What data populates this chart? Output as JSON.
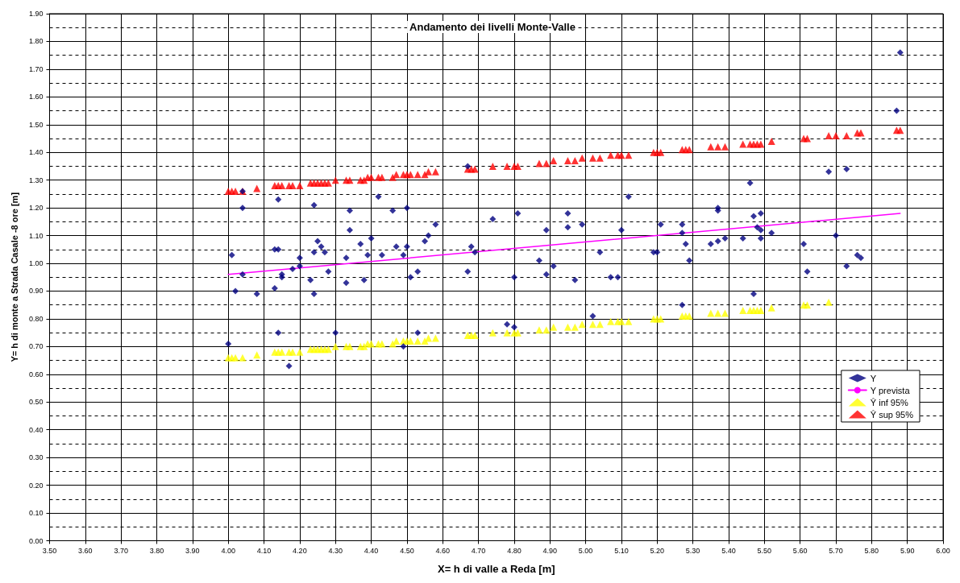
{
  "chart_data": {
    "type": "scatter",
    "title": "Andamento dei livelli Monte-Valle",
    "xlabel": "X= h di valle a Reda [m]",
    "ylabel": "Y= h di monte a Strada Casale -8 ore [m]",
    "xlim": [
      3.5,
      6.0
    ],
    "ylim": [
      0,
      1.9
    ],
    "xticks": [
      {
        "value": 3.5,
        "label": "3.50"
      },
      {
        "value": 3.6,
        "label": "3.60"
      },
      {
        "value": 3.7,
        "label": "3.70"
      },
      {
        "value": 3.8,
        "label": "3.80"
      },
      {
        "value": 3.9,
        "label": "3.90"
      },
      {
        "value": 4.0,
        "label": "4.00"
      },
      {
        "value": 4.1,
        "label": "4.10"
      },
      {
        "value": 4.2,
        "label": "4.20"
      },
      {
        "value": 4.3,
        "label": "4.30"
      },
      {
        "value": 4.4,
        "label": "4.40"
      },
      {
        "value": 4.5,
        "label": "4.50"
      },
      {
        "value": 4.6,
        "label": "4.60"
      },
      {
        "value": 4.7,
        "label": "4.70"
      },
      {
        "value": 4.8,
        "label": "4.80"
      },
      {
        "value": 4.9,
        "label": "4.90"
      },
      {
        "value": 5.0,
        "label": "5.00"
      },
      {
        "value": 5.1,
        "label": "5.10"
      },
      {
        "value": 5.2,
        "label": "5.20"
      },
      {
        "value": 5.3,
        "label": "5.30"
      },
      {
        "value": 5.4,
        "label": "5.40"
      },
      {
        "value": 5.5,
        "label": "5.50"
      },
      {
        "value": 5.6,
        "label": "5.60"
      },
      {
        "value": 5.7,
        "label": "5.70"
      },
      {
        "value": 5.8,
        "label": "5.80"
      },
      {
        "value": 5.9,
        "label": "5.90"
      },
      {
        "value": 6.0,
        "label": "6.00"
      }
    ],
    "yticks": [
      {
        "value": 0,
        "label": "0.00"
      },
      {
        "value": 0.1,
        "label": "0.10"
      },
      {
        "value": 0.2,
        "label": "0.20"
      },
      {
        "value": 0.3,
        "label": "0.30"
      },
      {
        "value": 0.4,
        "label": "0.40"
      },
      {
        "value": 0.5,
        "label": "0.50"
      },
      {
        "value": 0.6,
        "label": "0.60"
      },
      {
        "value": 0.7,
        "label": "0.70"
      },
      {
        "value": 0.8,
        "label": "0.80"
      },
      {
        "value": 0.9,
        "label": "0.90"
      },
      {
        "value": 1.0,
        "label": "1.00"
      },
      {
        "value": 1.1,
        "label": "1.10"
      },
      {
        "value": 1.2,
        "label": "1.20"
      },
      {
        "value": 1.3,
        "label": "1.30"
      },
      {
        "value": 1.4,
        "label": "1.40"
      },
      {
        "value": 1.5,
        "label": "1.50"
      },
      {
        "value": 1.6,
        "label": "1.60"
      },
      {
        "value": 1.7,
        "label": "1.70"
      },
      {
        "value": 1.8,
        "label": "1.80"
      },
      {
        "value": 1.9,
        "label": "1.90"
      }
    ],
    "grid": true,
    "legend": "right",
    "series": [
      {
        "name": "Y",
        "marker": "diamond",
        "color": "#000080",
        "x": [
          4.0,
          4.01,
          4.04,
          4.04,
          4.02,
          4.08,
          4.04,
          4.14,
          4.13,
          4.14,
          4.15,
          4.15,
          4.13,
          4.14,
          4.17,
          4.18,
          4.2,
          4.2,
          4.23,
          4.24,
          4.24,
          4.24,
          4.25,
          4.26,
          4.27,
          4.28,
          4.3,
          4.33,
          4.33,
          4.34,
          4.34,
          4.37,
          4.38,
          4.39,
          4.4,
          4.42,
          4.43,
          4.46,
          4.47,
          4.49,
          4.5,
          4.5,
          4.51,
          4.53,
          4.53,
          4.49,
          4.55,
          4.56,
          4.58,
          4.67,
          4.68,
          4.69,
          4.67,
          4.74,
          4.78,
          4.8,
          4.8,
          4.81,
          4.87,
          4.89,
          4.89,
          4.91,
          4.95,
          4.95,
          4.97,
          4.99,
          5.02,
          5.04,
          5.07,
          5.09,
          5.1,
          5.12,
          5.19,
          5.2,
          5.21,
          5.27,
          5.27,
          5.28,
          5.29,
          5.27,
          5.35,
          5.37,
          5.39,
          5.37,
          5.37,
          5.44,
          5.46,
          5.47,
          5.48,
          5.49,
          5.49,
          5.49,
          5.47,
          5.52,
          5.61,
          5.62,
          5.68,
          5.73,
          5.7,
          5.73,
          5.76,
          5.77,
          5.87,
          5.88
        ],
        "values": [
          0.71,
          1.03,
          1.2,
          0.96,
          0.9,
          0.89,
          1.26,
          1.23,
          1.05,
          1.05,
          0.96,
          0.95,
          0.91,
          0.75,
          0.63,
          0.98,
          1.02,
          0.99,
          0.94,
          1.21,
          1.04,
          0.89,
          1.08,
          1.06,
          1.04,
          0.97,
          0.75,
          1.02,
          0.93,
          1.19,
          1.12,
          1.07,
          0.94,
          1.03,
          1.09,
          1.24,
          1.03,
          1.19,
          1.06,
          1.03,
          1.2,
          1.06,
          0.95,
          0.97,
          0.75,
          0.7,
          1.08,
          1.1,
          1.14,
          1.35,
          1.06,
          1.04,
          0.97,
          1.16,
          0.78,
          0.77,
          0.95,
          1.18,
          1.01,
          1.12,
          0.96,
          0.99,
          1.18,
          1.13,
          0.94,
          1.14,
          0.81,
          1.04,
          0.95,
          0.95,
          1.12,
          1.24,
          1.04,
          1.04,
          1.14,
          1.14,
          1.11,
          1.07,
          1.01,
          0.85,
          1.07,
          1.08,
          1.09,
          1.2,
          1.19,
          1.09,
          1.29,
          1.17,
          1.13,
          1.12,
          1.09,
          1.18,
          0.89,
          1.11,
          1.07,
          0.97,
          1.33,
          1.34,
          1.1,
          0.99,
          1.03,
          1.02,
          1.55,
          1.76
        ]
      },
      {
        "name": "Y prevista",
        "type": "line",
        "marker": "none",
        "color": "#ff00ff",
        "x": [
          4.0,
          5.88
        ],
        "values": [
          0.96,
          1.18
        ]
      },
      {
        "name": "Ŷ inf 95%",
        "marker": "triangle",
        "color": "#ffff00",
        "x": [
          4.0,
          4.01,
          4.02,
          4.04,
          4.08,
          4.13,
          4.14,
          4.15,
          4.17,
          4.18,
          4.2,
          4.23,
          4.24,
          4.25,
          4.26,
          4.27,
          4.28,
          4.3,
          4.33,
          4.34,
          4.37,
          4.38,
          4.39,
          4.4,
          4.42,
          4.43,
          4.46,
          4.47,
          4.49,
          4.5,
          4.51,
          4.53,
          4.55,
          4.56,
          4.58,
          4.67,
          4.68,
          4.69,
          4.74,
          4.78,
          4.8,
          4.81,
          4.87,
          4.89,
          4.91,
          4.95,
          4.97,
          4.99,
          5.02,
          5.04,
          5.07,
          5.09,
          5.1,
          5.12,
          5.19,
          5.2,
          5.21,
          5.27,
          5.28,
          5.29,
          5.35,
          5.37,
          5.39,
          5.44,
          5.46,
          5.47,
          5.48,
          5.49,
          5.52,
          5.61,
          5.62,
          5.68
        ],
        "values": [
          0.66,
          0.66,
          0.66,
          0.66,
          0.67,
          0.68,
          0.68,
          0.68,
          0.68,
          0.68,
          0.68,
          0.69,
          0.69,
          0.69,
          0.69,
          0.69,
          0.69,
          0.7,
          0.7,
          0.7,
          0.7,
          0.7,
          0.71,
          0.71,
          0.71,
          0.71,
          0.71,
          0.72,
          0.72,
          0.72,
          0.72,
          0.72,
          0.72,
          0.73,
          0.73,
          0.74,
          0.74,
          0.74,
          0.75,
          0.75,
          0.75,
          0.75,
          0.76,
          0.76,
          0.77,
          0.77,
          0.77,
          0.78,
          0.78,
          0.78,
          0.79,
          0.79,
          0.79,
          0.79,
          0.8,
          0.8,
          0.8,
          0.81,
          0.81,
          0.81,
          0.82,
          0.82,
          0.82,
          0.83,
          0.83,
          0.83,
          0.83,
          0.83,
          0.84,
          0.85,
          0.85,
          0.86
        ]
      },
      {
        "name": "Ŷ sup 95%",
        "marker": "triangle",
        "color": "#ff0000",
        "x": [
          4.0,
          4.01,
          4.02,
          4.04,
          4.08,
          4.13,
          4.14,
          4.15,
          4.17,
          4.18,
          4.2,
          4.23,
          4.24,
          4.25,
          4.26,
          4.27,
          4.28,
          4.3,
          4.33,
          4.34,
          4.37,
          4.38,
          4.39,
          4.4,
          4.42,
          4.43,
          4.46,
          4.47,
          4.49,
          4.5,
          4.51,
          4.53,
          4.55,
          4.56,
          4.58,
          4.67,
          4.68,
          4.69,
          4.74,
          4.78,
          4.8,
          4.81,
          4.87,
          4.89,
          4.91,
          4.95,
          4.97,
          4.99,
          5.02,
          5.04,
          5.07,
          5.09,
          5.1,
          5.12,
          5.19,
          5.2,
          5.21,
          5.27,
          5.28,
          5.29,
          5.35,
          5.37,
          5.39,
          5.44,
          5.46,
          5.47,
          5.48,
          5.49,
          5.52,
          5.61,
          5.62,
          5.68,
          5.7,
          5.73,
          5.76,
          5.77,
          5.87,
          5.88
        ],
        "values": [
          1.26,
          1.26,
          1.26,
          1.26,
          1.27,
          1.28,
          1.28,
          1.28,
          1.28,
          1.28,
          1.28,
          1.29,
          1.29,
          1.29,
          1.29,
          1.29,
          1.29,
          1.3,
          1.3,
          1.3,
          1.3,
          1.3,
          1.31,
          1.31,
          1.31,
          1.31,
          1.31,
          1.32,
          1.32,
          1.32,
          1.32,
          1.32,
          1.32,
          1.33,
          1.33,
          1.34,
          1.34,
          1.34,
          1.35,
          1.35,
          1.35,
          1.35,
          1.36,
          1.36,
          1.37,
          1.37,
          1.37,
          1.38,
          1.38,
          1.38,
          1.39,
          1.39,
          1.39,
          1.39,
          1.4,
          1.4,
          1.4,
          1.41,
          1.41,
          1.41,
          1.42,
          1.42,
          1.42,
          1.43,
          1.43,
          1.43,
          1.43,
          1.43,
          1.44,
          1.45,
          1.45,
          1.46,
          1.46,
          1.46,
          1.47,
          1.47,
          1.48,
          1.48
        ]
      }
    ]
  }
}
